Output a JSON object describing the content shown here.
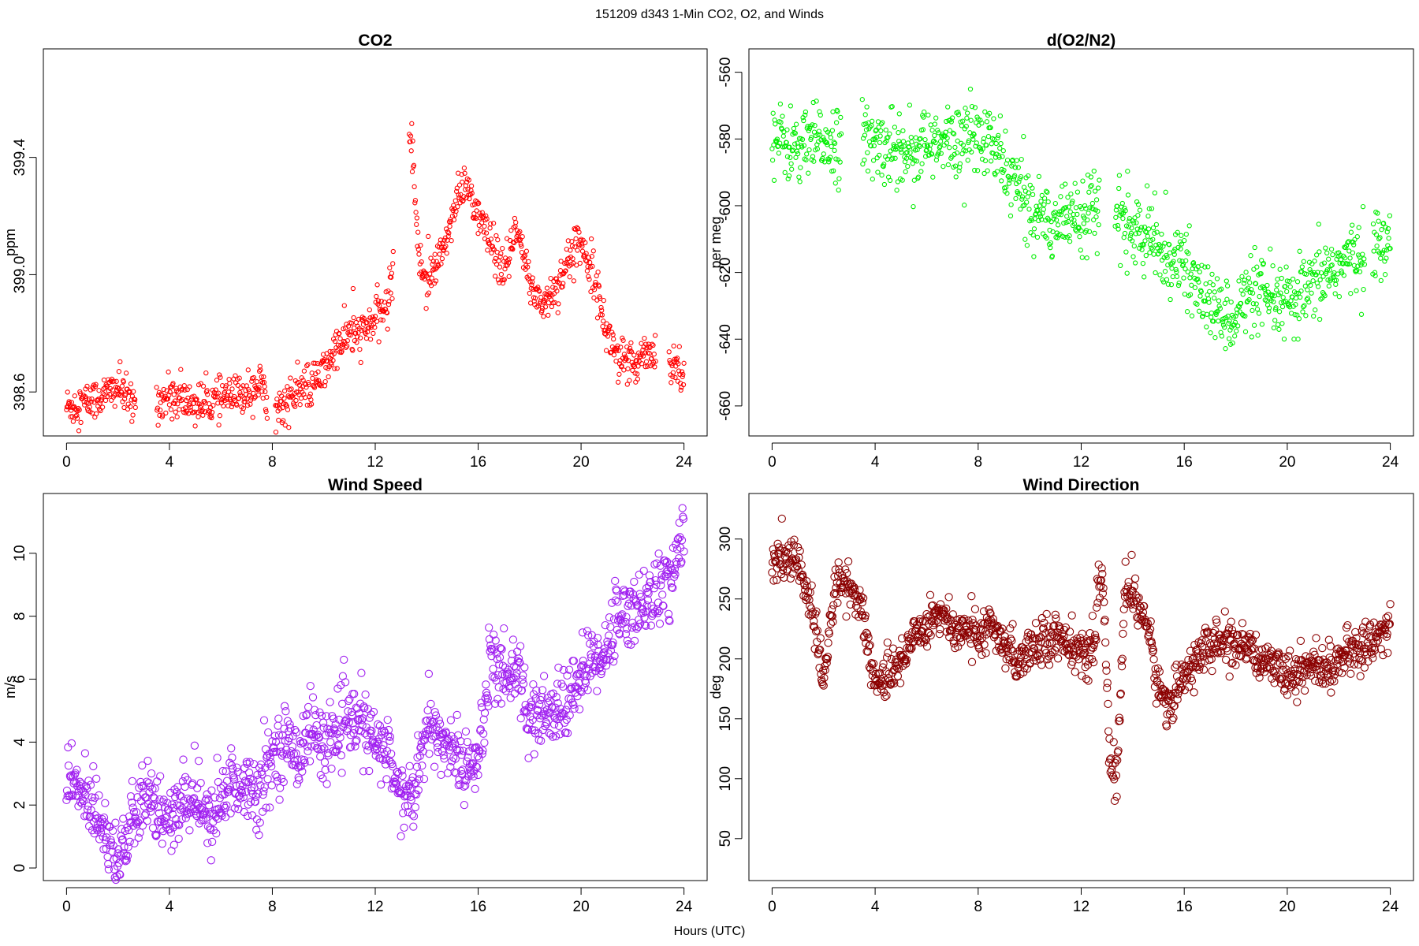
{
  "suptitle": "151209   d343   1-Min CO2, O2, and Winds",
  "xlabel": "Hours (UTC)",
  "panels": [
    {
      "title": "CO2",
      "ylabel": "ppm",
      "color": "#ff0000",
      "point_style": "small-open-circle",
      "xlim": [
        -0.9,
        24.9
      ],
      "ylim": [
        398.45,
        399.77
      ],
      "xticks": [
        "0",
        "4",
        "8",
        "12",
        "16",
        "20",
        "24"
      ],
      "yticks": [
        "398.6",
        "399.0",
        "399.4"
      ],
      "ytick_values": [
        398.6,
        399.0,
        399.4
      ]
    },
    {
      "title": "d(O2/N2)",
      "ylabel": "per meg",
      "color": "#00ee00",
      "point_style": "small-open-circle",
      "xlim": [
        -0.9,
        24.9
      ],
      "ylim": [
        -669,
        -553
      ],
      "xticks": [
        "0",
        "4",
        "8",
        "12",
        "16",
        "20",
        "24"
      ],
      "yticks": [
        "-660",
        "-640",
        "-620",
        "-600",
        "-580",
        "-560"
      ],
      "ytick_values": [
        -660,
        -640,
        -620,
        -600,
        -580,
        -560
      ]
    },
    {
      "title": "Wind Speed",
      "ylabel": "m/s",
      "color": "#a020f0",
      "point_style": "large-open-circle",
      "xlim": [
        -0.9,
        24.9
      ],
      "ylim": [
        -0.4,
        11.9
      ],
      "xticks": [
        "0",
        "4",
        "8",
        "12",
        "16",
        "20",
        "24"
      ],
      "yticks": [
        "0",
        "2",
        "4",
        "6",
        "8",
        "10"
      ],
      "ytick_values": [
        0,
        2,
        4,
        6,
        8,
        10
      ]
    },
    {
      "title": "Wind Direction",
      "ylabel": "deg",
      "color": "#8b0000",
      "point_style": "large-open-circle",
      "xlim": [
        -0.9,
        24.9
      ],
      "ylim": [
        15,
        338
      ],
      "xticks": [
        "0",
        "4",
        "8",
        "12",
        "16",
        "20",
        "24"
      ],
      "yticks": [
        "50",
        "100",
        "150",
        "200",
        "250",
        "300"
      ],
      "ytick_values": [
        50,
        100,
        150,
        200,
        250,
        300
      ]
    }
  ],
  "chart_data": [
    {
      "type": "scatter",
      "title": "CO2",
      "xlabel": "Hours (UTC)",
      "ylabel": "ppm",
      "xlim": [
        -0.9,
        24.9
      ],
      "ylim": [
        398.45,
        399.77
      ],
      "grid": false,
      "gaps": [
        [
          2.7,
          3.5
        ],
        [
          7.8,
          8.1
        ],
        [
          12.7,
          13.3
        ],
        [
          22.9,
          23.4
        ]
      ],
      "x": [
        0,
        0.5,
        1,
        1.5,
        2,
        2.5,
        3.5,
        4,
        4.5,
        5,
        5.5,
        6,
        6.5,
        7,
        7.5,
        8.1,
        8.5,
        9,
        9.5,
        10,
        10.5,
        11,
        11.5,
        12,
        12.5,
        13.4,
        13.7,
        14,
        14.5,
        15,
        15.5,
        16,
        16.5,
        17,
        17.5,
        18,
        18.5,
        19,
        19.5,
        20,
        20.5,
        21,
        21.5,
        22,
        22.5,
        23.5,
        24
      ],
      "y": [
        398.55,
        398.56,
        398.57,
        398.59,
        398.62,
        398.56,
        398.57,
        398.58,
        398.57,
        398.56,
        398.56,
        398.58,
        398.58,
        398.6,
        398.63,
        398.54,
        398.56,
        398.6,
        398.62,
        398.67,
        398.75,
        398.8,
        398.8,
        398.85,
        398.9,
        399.5,
        399.05,
        398.98,
        399.05,
        399.2,
        399.32,
        399.2,
        399.1,
        399.0,
        399.15,
        398.97,
        398.9,
        398.95,
        399.05,
        399.12,
        399.0,
        398.8,
        398.72,
        398.68,
        398.75,
        398.7,
        398.68
      ]
    },
    {
      "type": "scatter",
      "title": "d(O2/N2)",
      "xlabel": "Hours (UTC)",
      "ylabel": "per meg",
      "xlim": [
        -0.9,
        24.9
      ],
      "ylim": [
        -669,
        -553
      ],
      "grid": false,
      "gaps": [
        [
          2.7,
          3.5
        ],
        [
          12.7,
          13.3
        ],
        [
          23.0,
          23.3
        ]
      ],
      "x": [
        0,
        0.5,
        1,
        1.5,
        2,
        2.5,
        3.5,
        4,
        4.5,
        5,
        5.5,
        6,
        6.5,
        7,
        7.5,
        8,
        8.5,
        9,
        9.5,
        10,
        10.5,
        11,
        11.5,
        12,
        12.5,
        13.4,
        14,
        14.5,
        15,
        15.5,
        16,
        16.5,
        17,
        17.5,
        18,
        18.5,
        19,
        19.5,
        20,
        20.5,
        21,
        21.5,
        22,
        22.5,
        23.4,
        24
      ],
      "y": [
        -580,
        -581,
        -583,
        -582,
        -580,
        -581,
        -580,
        -582,
        -582,
        -583,
        -583,
        -582,
        -582,
        -581,
        -579,
        -580,
        -582,
        -588,
        -594,
        -600,
        -603,
        -604,
        -603,
        -602,
        -601,
        -603,
        -607,
        -610,
        -613,
        -616,
        -618,
        -624,
        -630,
        -633,
        -632,
        -627,
        -628,
        -629,
        -630,
        -628,
        -625,
        -620,
        -618,
        -616,
        -612,
        -611
      ]
    },
    {
      "type": "scatter",
      "title": "Wind Speed",
      "xlabel": "Hours (UTC)",
      "ylabel": "m/s",
      "xlim": [
        -0.9,
        24.9
      ],
      "ylim": [
        -0.4,
        11.9
      ],
      "grid": false,
      "x": [
        0,
        0.5,
        1,
        1.5,
        2,
        2.5,
        3,
        3.5,
        4,
        4.5,
        5,
        5.5,
        6,
        6.5,
        7,
        7.5,
        8,
        8.5,
        9,
        9.5,
        10,
        10.5,
        11,
        11.5,
        12,
        12.5,
        13,
        13.5,
        14,
        14.5,
        15,
        15.5,
        16,
        16.5,
        17,
        17.5,
        18,
        18.5,
        19,
        19.5,
        20,
        20.5,
        21,
        21.5,
        22,
        22.5,
        23,
        23.5,
        24
      ],
      "y": [
        2.8,
        2.4,
        2.1,
        1.3,
        0.3,
        1.2,
        2.2,
        1.9,
        1.4,
        2.0,
        2.4,
        1.3,
        2.2,
        2.7,
        2.6,
        2.5,
        3.6,
        4.0,
        3.6,
        4.5,
        3.9,
        4.4,
        4.6,
        4.6,
        3.9,
        3.7,
        2.2,
        2.3,
        4.4,
        4.1,
        3.8,
        3.2,
        3.5,
        6.8,
        6.0,
        6.6,
        4.4,
        4.8,
        4.9,
        5.2,
        6.2,
        6.6,
        7.0,
        8.1,
        8.1,
        8.5,
        8.8,
        9.2,
        10.8
      ]
    },
    {
      "type": "scatter",
      "title": "Wind Direction",
      "xlabel": "Hours (UTC)",
      "ylabel": "deg",
      "xlim": [
        -0.9,
        24.9
      ],
      "ylim": [
        15,
        338
      ],
      "grid": false,
      "x": [
        0,
        0.5,
        1,
        1.5,
        2,
        2.5,
        3,
        3.5,
        4,
        4.5,
        5,
        5.5,
        6,
        6.5,
        7,
        7.5,
        8,
        8.5,
        9,
        9.5,
        10,
        10.5,
        11,
        11.5,
        12,
        12.5,
        12.8,
        13.1,
        13.4,
        13.7,
        14,
        14.5,
        15,
        15.5,
        16,
        16.5,
        17,
        17.5,
        18,
        18.5,
        19,
        19.5,
        20,
        20.5,
        21,
        21.5,
        22,
        22.5,
        23,
        23.5,
        24
      ],
      "y": [
        276,
        282,
        283,
        245,
        180,
        268,
        262,
        238,
        180,
        180,
        200,
        220,
        230,
        240,
        225,
        225,
        220,
        225,
        210,
        200,
        210,
        215,
        220,
        215,
        200,
        210,
        280,
        120,
        100,
        265,
        250,
        235,
        175,
        160,
        190,
        200,
        210,
        215,
        210,
        205,
        200,
        200,
        185,
        190,
        195,
        190,
        200,
        205,
        210,
        220,
        225
      ]
    }
  ]
}
